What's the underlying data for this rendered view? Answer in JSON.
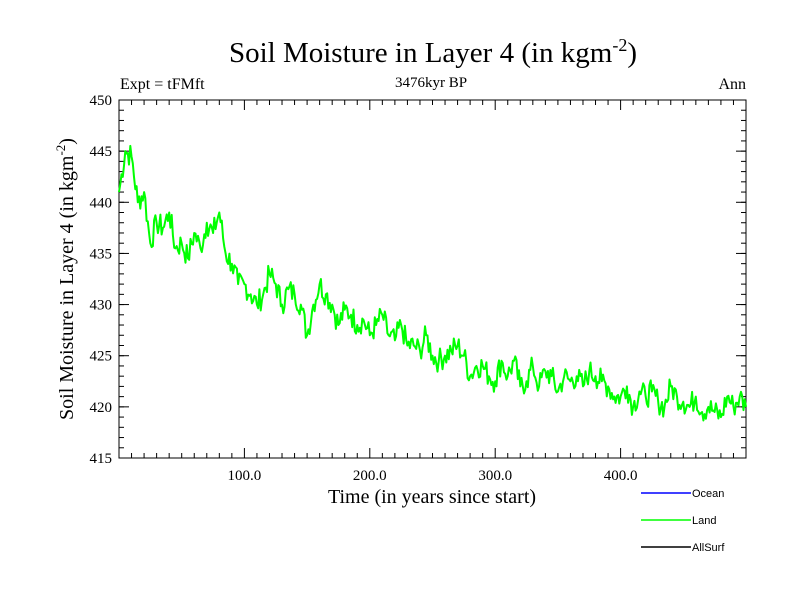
{
  "chart_data": {
    "type": "line",
    "title": "Soil Moisture in Layer 4 (in kgm",
    "title_sup": "-2",
    "title_end": ")",
    "subtitle_left": "Expt = tFMft",
    "subtitle_center": "3476kyr BP",
    "subtitle_right": "Ann",
    "xlabel": "Time (in years since start)",
    "ylabel": "Soil Moisture in Layer 4 (in kgm",
    "ylabel_sup": "-2",
    "ylabel_end": ")",
    "xlim": [
      0,
      500
    ],
    "ylim": [
      415,
      450
    ],
    "x_ticks": [
      100,
      200,
      300,
      400
    ],
    "x_tick_labels": [
      "100.0",
      "200.0",
      "300.0",
      "400.0"
    ],
    "y_ticks": [
      415,
      420,
      425,
      430,
      435,
      440,
      445,
      450
    ],
    "y_tick_labels": [
      "415",
      "420",
      "425",
      "430",
      "435",
      "440",
      "445",
      "450"
    ],
    "legend": [
      {
        "name": "Ocean",
        "color": "#0000ff"
      },
      {
        "name": "Land",
        "color": "#00ff00"
      },
      {
        "name": "AllSurf",
        "color": "#000000"
      }
    ],
    "series": [
      {
        "name": "Land",
        "color": "#00ff00",
        "x": [
          0,
          5,
          10,
          15,
          20,
          25,
          30,
          35,
          40,
          45,
          50,
          55,
          60,
          65,
          70,
          75,
          80,
          85,
          90,
          95,
          100,
          105,
          110,
          115,
          120,
          125,
          130,
          135,
          140,
          145,
          150,
          155,
          160,
          165,
          170,
          175,
          180,
          185,
          190,
          195,
          200,
          205,
          210,
          215,
          220,
          225,
          230,
          235,
          240,
          245,
          250,
          255,
          260,
          265,
          270,
          275,
          280,
          285,
          290,
          295,
          300,
          305,
          310,
          315,
          320,
          325,
          330,
          335,
          340,
          345,
          350,
          355,
          360,
          365,
          370,
          375,
          380,
          385,
          390,
          395,
          400,
          405,
          410,
          415,
          420,
          425,
          430,
          435,
          440,
          445,
          450,
          455,
          460,
          465,
          470,
          475,
          480,
          485,
          490,
          495,
          500
        ],
        "values": [
          441,
          445,
          444.5,
          440,
          441,
          436,
          438,
          437.5,
          439,
          435.5,
          436,
          434.5,
          437,
          435.5,
          438,
          437,
          439,
          435,
          434,
          432,
          432,
          431,
          430,
          431,
          433,
          432,
          430,
          431.5,
          431,
          430,
          427,
          430,
          432,
          431,
          430,
          428,
          429.5,
          429,
          428,
          428.5,
          427,
          428,
          429,
          427,
          426.5,
          428,
          426,
          426,
          425.5,
          427,
          425,
          424.5,
          425,
          425.5,
          426,
          425,
          423,
          424,
          424,
          423,
          422.5,
          424.5,
          423,
          424.5,
          422,
          422.5,
          424,
          422,
          423.5,
          423,
          421.5,
          423,
          422.5,
          423,
          422,
          423.5,
          423,
          422.5,
          422,
          421,
          421,
          422,
          420,
          421.5,
          421,
          421.5,
          420.5,
          420,
          422,
          421,
          420.5,
          420,
          421,
          419.5,
          420,
          419.5,
          419,
          421,
          420,
          421,
          420
        ]
      }
    ]
  }
}
